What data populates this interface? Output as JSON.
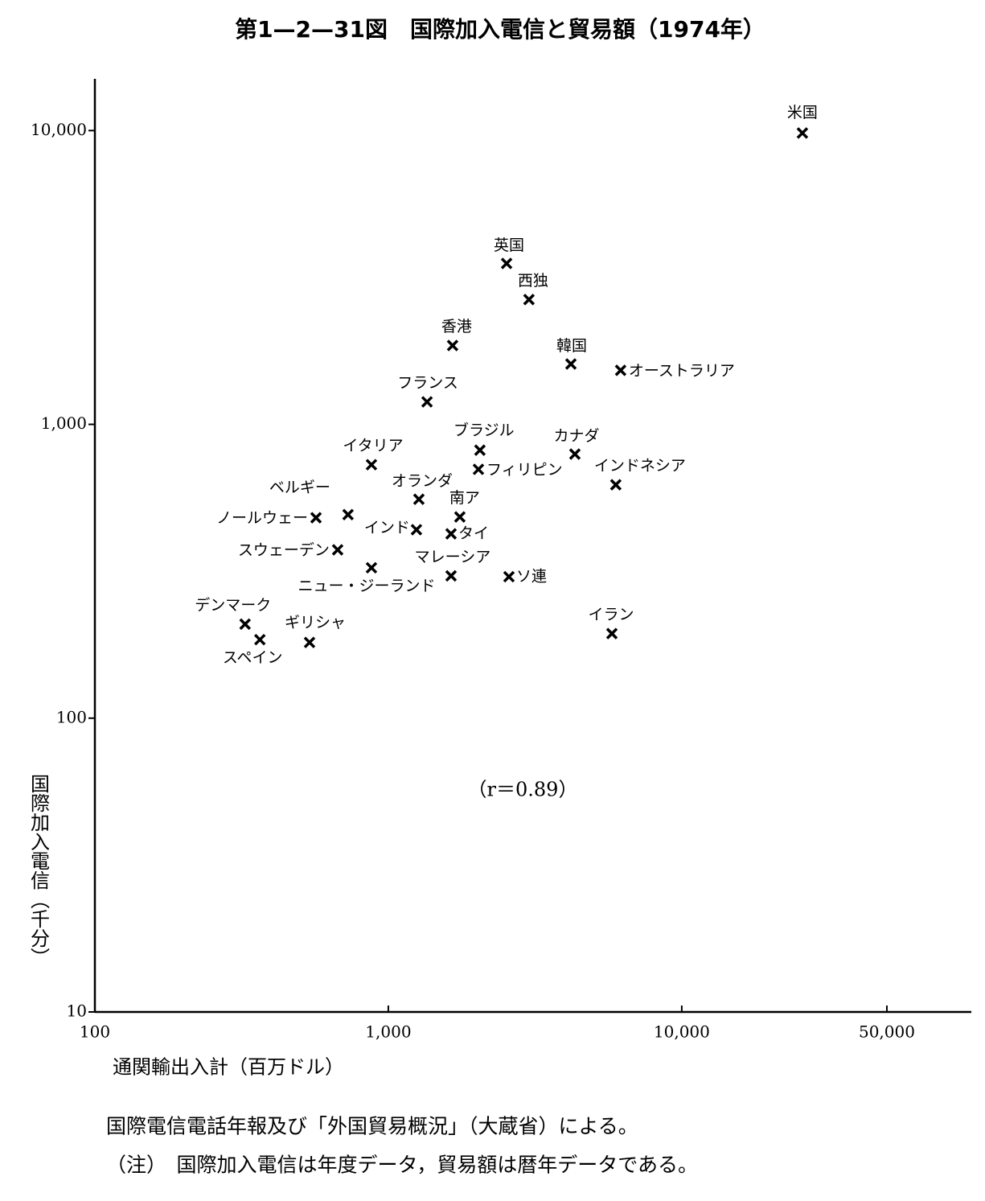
{
  "chart_data": {
    "type": "scatter",
    "title": "第1—2—31図　国際加入電信と貿易額（1974年）",
    "xlabel": "通関輸出入計（百万ドル）",
    "ylabel": "国際加入電信（千分）",
    "annotation": "（r＝0.89）",
    "xscale": "log",
    "yscale": "log",
    "xlim": [
      100,
      97000
    ],
    "ylim": [
      10,
      15000
    ],
    "xticks": [
      100,
      {
        "value": 1000,
        "label": "1,000"
      },
      {
        "value": 10000,
        "label": "10,000"
      },
      {
        "value": 50000,
        "label": "50,000"
      }
    ],
    "yticks": [
      10,
      100,
      {
        "value": 1000,
        "label": "1,000"
      },
      {
        "value": 10000,
        "label": "10,000"
      }
    ],
    "color": "#000000",
    "points": [
      {
        "label": "米国",
        "x": 25770,
        "y": 9810
      },
      {
        "label": "英国",
        "x": 2530,
        "y": 3530
      },
      {
        "label": "西独",
        "x": 3015,
        "y": 2660
      },
      {
        "label": "香港",
        "x": 1656,
        "y": 1855
      },
      {
        "label": "韓国",
        "x": 4190,
        "y": 1605
      },
      {
        "label": "オーストラリア",
        "x": 6190,
        "y": 1527
      },
      {
        "label": "フランス",
        "x": 1355,
        "y": 1193
      },
      {
        "label": "ブラジル",
        "x": 2052,
        "y": 817
      },
      {
        "label": "カナダ",
        "x": 4323,
        "y": 792
      },
      {
        "label": "イタリア",
        "x": 876,
        "y": 729
      },
      {
        "label": "フィリピン",
        "x": 2028,
        "y": 703
      },
      {
        "label": "インドネシア",
        "x": 5960,
        "y": 623
      },
      {
        "label": "オランダ",
        "x": 1271,
        "y": 556
      },
      {
        "label": "ベルギー",
        "x": 729,
        "y": 493
      },
      {
        "label": "ノールウェー",
        "x": 567,
        "y": 481
      },
      {
        "label": "南ア",
        "x": 1753,
        "y": 484
      },
      {
        "label": "インド",
        "x": 1247,
        "y": 438
      },
      {
        "label": "タイ",
        "x": 1636,
        "y": 424
      },
      {
        "label": "スウェーデン",
        "x": 672,
        "y": 374
      },
      {
        "label": "ニュー・ジーランド",
        "x": 876,
        "y": 325
      },
      {
        "label": "マレーシア",
        "x": 1636,
        "y": 305
      },
      {
        "label": "ソ連",
        "x": 2577,
        "y": 303
      },
      {
        "label": "デンマーク",
        "x": 325,
        "y": 209
      },
      {
        "label": "スペイン",
        "x": 365,
        "y": 185
      },
      {
        "label": "ギリシャ",
        "x": 539,
        "y": 181
      },
      {
        "label": "イラン",
        "x": 5780,
        "y": 194
      }
    ]
  },
  "source": "国際電信電話年報及び「外国貿易概況」（大蔵省）による。",
  "note": "（注）　国際加入電信は年度データ，貿易額は暦年データである。"
}
